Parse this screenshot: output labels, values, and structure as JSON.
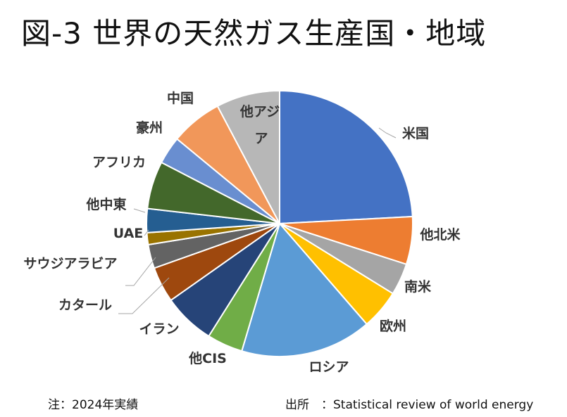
{
  "title": "図-3 世界の天然ガス生産国・地域",
  "chart_data": {
    "type": "pie",
    "title": "図-3 世界の天然ガス生産国・地域",
    "start_angle_deg": 0,
    "direction": "clockwise",
    "slices": [
      {
        "label": "米国",
        "value": 25.0,
        "color": "#4472C4"
      },
      {
        "label": "他北米",
        "value": 6.0,
        "color": "#ED7D31"
      },
      {
        "label": "南米",
        "value": 4.0,
        "color": "#A5A5A5"
      },
      {
        "label": "欧州",
        "value": 5.0,
        "color": "#FFC000"
      },
      {
        "label": "ロシア",
        "value": 16.5,
        "color": "#5B9BD5"
      },
      {
        "label": "他CIS",
        "value": 4.5,
        "color": "#70AD47"
      },
      {
        "label": "イラン",
        "value": 6.5,
        "color": "#264478"
      },
      {
        "label": "カタール",
        "value": 4.5,
        "color": "#9E480E"
      },
      {
        "label": "サウジアラビア",
        "value": 3.0,
        "color": "#636363"
      },
      {
        "label": "UAE",
        "value": 1.5,
        "color": "#997300"
      },
      {
        "label": "他中東",
        "value": 3.0,
        "color": "#255E91"
      },
      {
        "label": "アフリカ",
        "value": 6.0,
        "color": "#43682B"
      },
      {
        "label": "豪州",
        "value": 3.5,
        "color": "#698ED0"
      },
      {
        "label": "中国",
        "value": 6.5,
        "color": "#F1975A"
      },
      {
        "label": "他アジア",
        "value": 8.0,
        "color": "#B7B7B7"
      }
    ]
  },
  "notes": {
    "left": "注：2024年実績",
    "right": "出所　：Statistical  review of world energy"
  }
}
